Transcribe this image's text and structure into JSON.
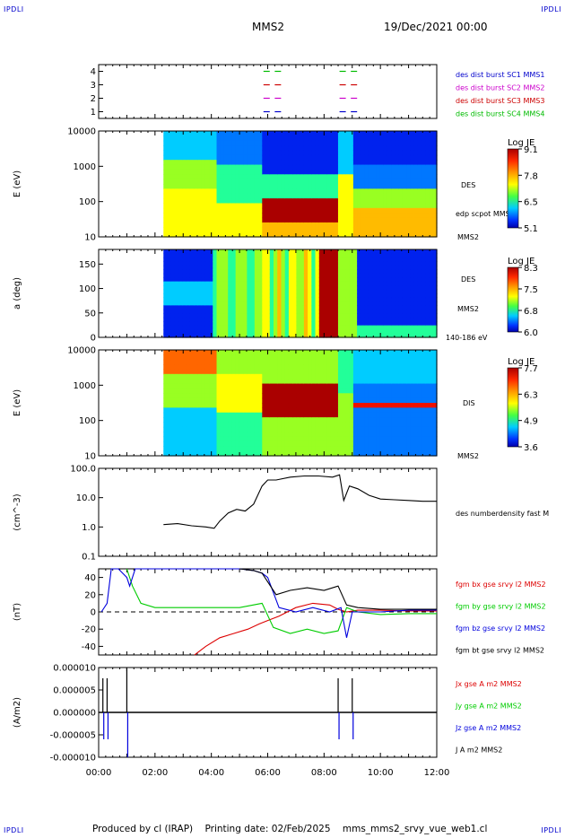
{
  "corners": {
    "tl": "IPDLI",
    "tr": "IPDLI",
    "bl": "IPDLI",
    "br": "IPDLI"
  },
  "header": {
    "spacecraft": "MMS2",
    "datetime": "19/Dec/2021 00:00"
  },
  "footer": "Produced by cl (IRAP)    Printing date: 02/Feb/2025    mms_mms2_srvy_vue_web1.cl",
  "time_axis": {
    "labels": [
      "00:00",
      "02:00",
      "04:00",
      "06:00",
      "08:00",
      "10:00",
      "12:00"
    ],
    "range_hours": [
      0,
      12
    ]
  },
  "chart_data": [
    {
      "type": "line",
      "name": "burst coverage",
      "ylim": [
        0.5,
        4.5
      ],
      "yticks": [
        "1",
        "2",
        "3",
        "4"
      ],
      "legend": [
        {
          "label": "des dist burst SC1 MMS1",
          "color": "#0000cc"
        },
        {
          "label": "des dist burst SC2 MMS2",
          "color": "#cc00cc"
        },
        {
          "label": "des dist burst SC3 MMS3",
          "color": "#cc0000"
        },
        {
          "label": "des dist burst SC4 MMS4",
          "color": "#00bb00"
        }
      ],
      "intervals_hours": [
        [
          5.85,
          6.15
        ],
        [
          6.25,
          6.55
        ],
        [
          8.55,
          8.85
        ],
        [
          8.95,
          9.25
        ]
      ],
      "levels": [
        1,
        2,
        3,
        4
      ]
    },
    {
      "type": "heatmap",
      "ylabel": "E (eV)",
      "yscale": "log",
      "yticks": [
        "10",
        "100",
        "1000",
        "10000"
      ],
      "right_labels": [
        "DES",
        "edp scpot MMS2",
        "MMS2"
      ],
      "colorbar": {
        "title": "Log JE",
        "ticks": [
          "9.1",
          "7.8",
          "6.5",
          "5.1"
        ]
      },
      "data_start_hour": 2.3
    },
    {
      "type": "heatmap",
      "ylabel": "a (deg)",
      "yticks": [
        "0",
        "50",
        "100",
        "150"
      ],
      "ylim": [
        0,
        180
      ],
      "right_labels": [
        "DES",
        "MMS2",
        "140-186 eV"
      ],
      "colorbar": {
        "title": "Log JE",
        "ticks": [
          "8.3",
          "7.5",
          "6.8",
          "6.0"
        ]
      },
      "data_start_hour": 2.3
    },
    {
      "type": "heatmap",
      "ylabel": "E (eV)",
      "yscale": "log",
      "yticks": [
        "10",
        "100",
        "1000",
        "10000"
      ],
      "right_labels": [
        "DIS",
        "MMS2"
      ],
      "colorbar": {
        "title": "Log JE",
        "ticks": [
          "7.7",
          "6.3",
          "4.9",
          "3.6"
        ]
      },
      "data_start_hour": 2.3
    },
    {
      "type": "line",
      "ylabel": "(cm^-3)",
      "yscale": "log",
      "yticks": [
        "0.1",
        "1.0",
        "10.0",
        "100.0"
      ],
      "ylim": [
        0.1,
        100
      ],
      "series": [
        {
          "name": "des numberdensity fast M",
          "color": "#000000",
          "x": [
            2.3,
            2.8,
            3.3,
            3.8,
            4.1,
            4.3,
            4.6,
            4.9,
            5.2,
            5.5,
            5.8,
            6.0,
            6.3,
            6.8,
            7.3,
            7.8,
            8.3,
            8.55,
            8.7,
            8.9,
            9.2,
            9.6,
            10.0,
            10.5,
            11.0,
            11.5,
            12.0
          ],
          "y": [
            1.2,
            1.3,
            1.1,
            1.0,
            0.9,
            1.6,
            3.0,
            4.0,
            3.5,
            6.0,
            25,
            40,
            40,
            50,
            55,
            55,
            50,
            60,
            8,
            25,
            20,
            12,
            9,
            8.5,
            8.0,
            7.5,
            7.5
          ]
        }
      ]
    },
    {
      "type": "line",
      "ylabel": "(nT)",
      "yticks": [
        "-40",
        "-20",
        "0",
        "20",
        "40"
      ],
      "ylim": [
        -50,
        50
      ],
      "series": [
        {
          "name": "fgm bx gse srvy l2 MMS2",
          "color": "#dd0000",
          "x": [
            3.4,
            3.8,
            4.3,
            4.8,
            5.3,
            5.7,
            6.0,
            6.4,
            7.0,
            7.6,
            8.2,
            8.5,
            8.8,
            9.2,
            10.0,
            11.0,
            12.0
          ],
          "y": [
            -50,
            -40,
            -30,
            -25,
            -20,
            -14,
            -10,
            -5,
            5,
            10,
            8,
            3,
            0,
            2,
            2,
            1,
            1
          ]
        },
        {
          "name": "fgm by gse srvy l2 MMS2",
          "color": "#00cc00",
          "x": [
            1.0,
            1.2,
            1.5,
            2.0,
            2.5,
            3.0,
            4.0,
            5.0,
            5.8,
            6.2,
            6.8,
            7.4,
            8.0,
            8.5,
            8.8,
            9.2,
            10.0,
            11.0,
            12.0
          ],
          "y": [
            50,
            30,
            10,
            5,
            5,
            5,
            5,
            5,
            10,
            -18,
            -25,
            -20,
            -25,
            -22,
            5,
            0,
            -3,
            -2,
            -2
          ]
        },
        {
          "name": "fgm bz gse srvy l2 MMS2",
          "color": "#0000dd",
          "x": [
            0.1,
            0.3,
            0.45,
            0.7,
            1.0,
            1.1,
            1.3,
            2.5,
            4.0,
            5.0,
            5.5,
            5.8,
            6.0,
            6.4,
            7.0,
            7.6,
            8.2,
            8.6,
            8.8,
            9.0,
            10.0,
            11.0,
            12.0
          ],
          "y": [
            0,
            10,
            50,
            50,
            40,
            30,
            50,
            50,
            50,
            50,
            48,
            45,
            40,
            5,
            0,
            5,
            0,
            5,
            -30,
            0,
            0,
            2,
            2
          ]
        },
        {
          "name": "fgm bt gse srvy l2 MMS2",
          "color": "#000000",
          "x": [
            5.0,
            5.5,
            5.8,
            6.0,
            6.3,
            6.8,
            7.4,
            8.0,
            8.5,
            8.8,
            9.2,
            10.0,
            11.0,
            12.0
          ],
          "y": [
            50,
            48,
            45,
            35,
            20,
            25,
            28,
            25,
            30,
            8,
            5,
            3,
            3,
            3
          ]
        }
      ]
    },
    {
      "type": "line",
      "ylabel": "(A/m2)",
      "yticks": [
        "-0.000010",
        "-0.000005",
        "0.000000",
        "0.000005",
        "0.000010"
      ],
      "ylim": [
        -1e-05,
        1e-05
      ],
      "series": [
        {
          "name": "Jx gse A m2 MMS2",
          "color": "#dd0000"
        },
        {
          "name": "Jy gse A m2 MMS2",
          "color": "#00cc00"
        },
        {
          "name": "Jz gse A m2 MMS2",
          "color": "#0000dd"
        },
        {
          "name": "J A m2 MMS2",
          "color": "#000000"
        }
      ],
      "spikes_hours": [
        0.15,
        0.3,
        1.0,
        8.5,
        9.0
      ]
    }
  ]
}
